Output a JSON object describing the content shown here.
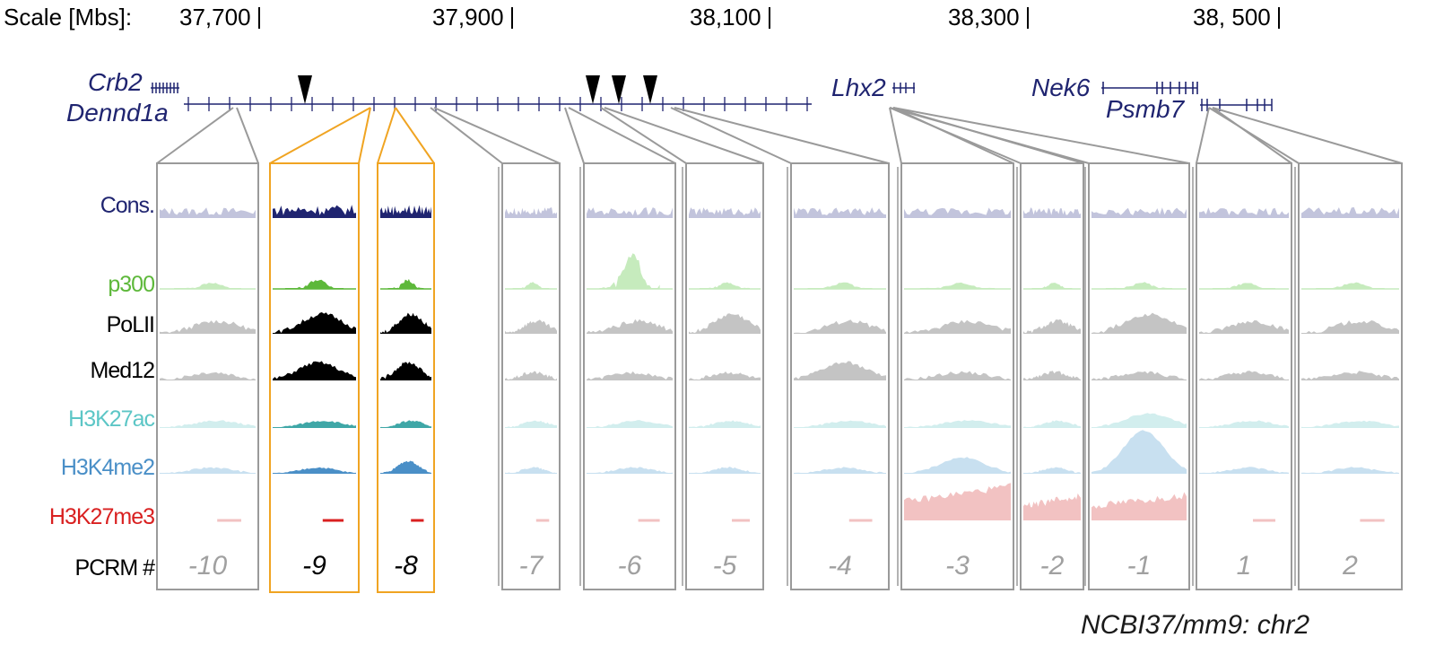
{
  "scale": {
    "title": "Scale [Mbs]:",
    "ticks": [
      "37,700",
      "37,900",
      "38,100",
      "38,300",
      "38, 500"
    ]
  },
  "genes": {
    "crb2": "Crb2",
    "dennd1a": "Dennd1a",
    "lhx2": "Lhx2",
    "nek6": "Nek6",
    "psmb7": "Psmb7"
  },
  "tracks": [
    {
      "key": "cons",
      "label": "Cons.",
      "color": "#1f2470"
    },
    {
      "key": "p300",
      "label": "p300",
      "color": "#5db83a"
    },
    {
      "key": "polii",
      "label": "PoLII",
      "color": "#000000"
    },
    {
      "key": "med12",
      "label": "Med12",
      "color": "#000000"
    },
    {
      "key": "h3k27ac",
      "label": "H3K27ac",
      "color": "#5cc6c6"
    },
    {
      "key": "h3k4me2",
      "label": "H3K4me2",
      "color": "#4a8fc7"
    },
    {
      "key": "h3k27me3",
      "label": "H3K27me3",
      "color": "#d92020"
    },
    {
      "key": "pcrm",
      "label": "PCRM #",
      "color": "#000000"
    }
  ],
  "pcrms": [
    "-10",
    "-9",
    "-8",
    "-7",
    "-6",
    "-5",
    "-4",
    "-3",
    "-2",
    "-1",
    "1",
    "2"
  ],
  "highlighted_pcrms": [
    "-9",
    "-8"
  ],
  "colors": {
    "highlight_border": "#f0a422",
    "panel_border": "#9a9a9a",
    "gene_model": "#1f2470",
    "cons_faded": "#c2c4dc",
    "p300_faded": "#c6ebbd",
    "signal_faded": "#c4c4c4",
    "h3k27ac_faded": "#d2eeee",
    "h3k4me2_faded": "#c8e0f0",
    "h3k27me3_faded": "#f2c2c2"
  },
  "reference": "NCBI37/mm9: chr2"
}
